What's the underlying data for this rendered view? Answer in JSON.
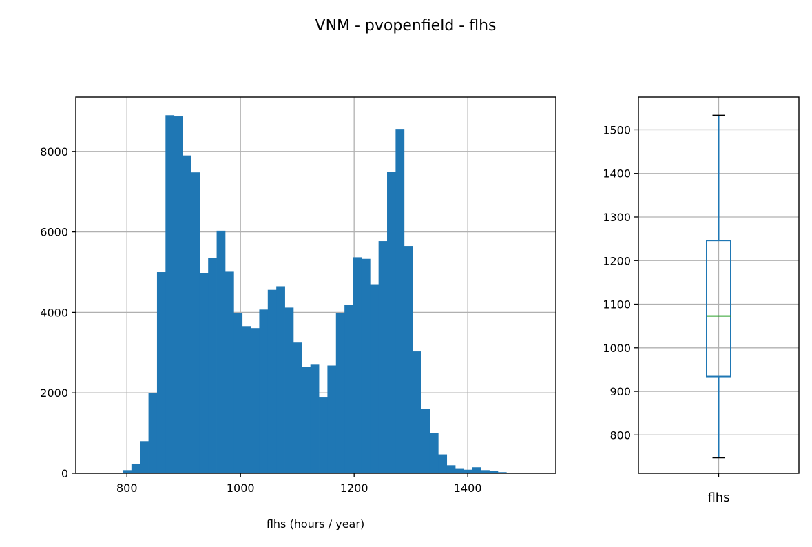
{
  "figure": {
    "title": "VNM - pvopenfield - flhs"
  },
  "chart_data": [
    {
      "type": "histogram",
      "xlabel": "flhs (hours / year)",
      "ylabel": "",
      "xlim": [
        710,
        1555
      ],
      "ylim": [
        0,
        9350
      ],
      "xticks": [
        800,
        1000,
        1200,
        1400
      ],
      "yticks": [
        0,
        2000,
        4000,
        6000,
        8000
      ],
      "grid": true,
      "bar_color": "#1f77b4",
      "bin_edges": [
        793,
        808,
        823,
        838,
        853,
        868,
        883,
        898,
        913,
        928,
        943,
        958,
        973,
        988,
        1003,
        1018,
        1033,
        1048,
        1063,
        1078,
        1093,
        1108,
        1123,
        1138,
        1153,
        1168,
        1183,
        1198,
        1213,
        1228,
        1243,
        1258,
        1273,
        1288,
        1303,
        1318,
        1333,
        1348,
        1363,
        1378,
        1393,
        1408,
        1423,
        1438,
        1453,
        1468,
        1483,
        1498
      ],
      "counts": [
        80,
        240,
        800,
        2000,
        5000,
        8900,
        8870,
        7900,
        7480,
        4970,
        5360,
        6030,
        5010,
        3980,
        3660,
        3610,
        4070,
        4560,
        4650,
        4120,
        3250,
        2640,
        2700,
        1900,
        2680,
        3980,
        4180,
        5370,
        5330,
        4700,
        5770,
        7490,
        8560,
        5650,
        3030,
        1600,
        1010,
        470,
        200,
        110,
        90,
        150,
        80,
        60,
        30,
        10,
        5
      ]
    },
    {
      "type": "box",
      "categories": [
        "flhs"
      ],
      "ylim": [
        712,
        1575
      ],
      "yticks": [
        800,
        900,
        1000,
        1100,
        1200,
        1300,
        1400,
        1500
      ],
      "grid": true,
      "whisker_low": 748,
      "q1": 934,
      "median": 1073,
      "q3": 1246,
      "whisker_high": 1533,
      "box_color": "#1f77b4",
      "median_color": "#2ca02c",
      "cap_color": "#000000"
    }
  ]
}
